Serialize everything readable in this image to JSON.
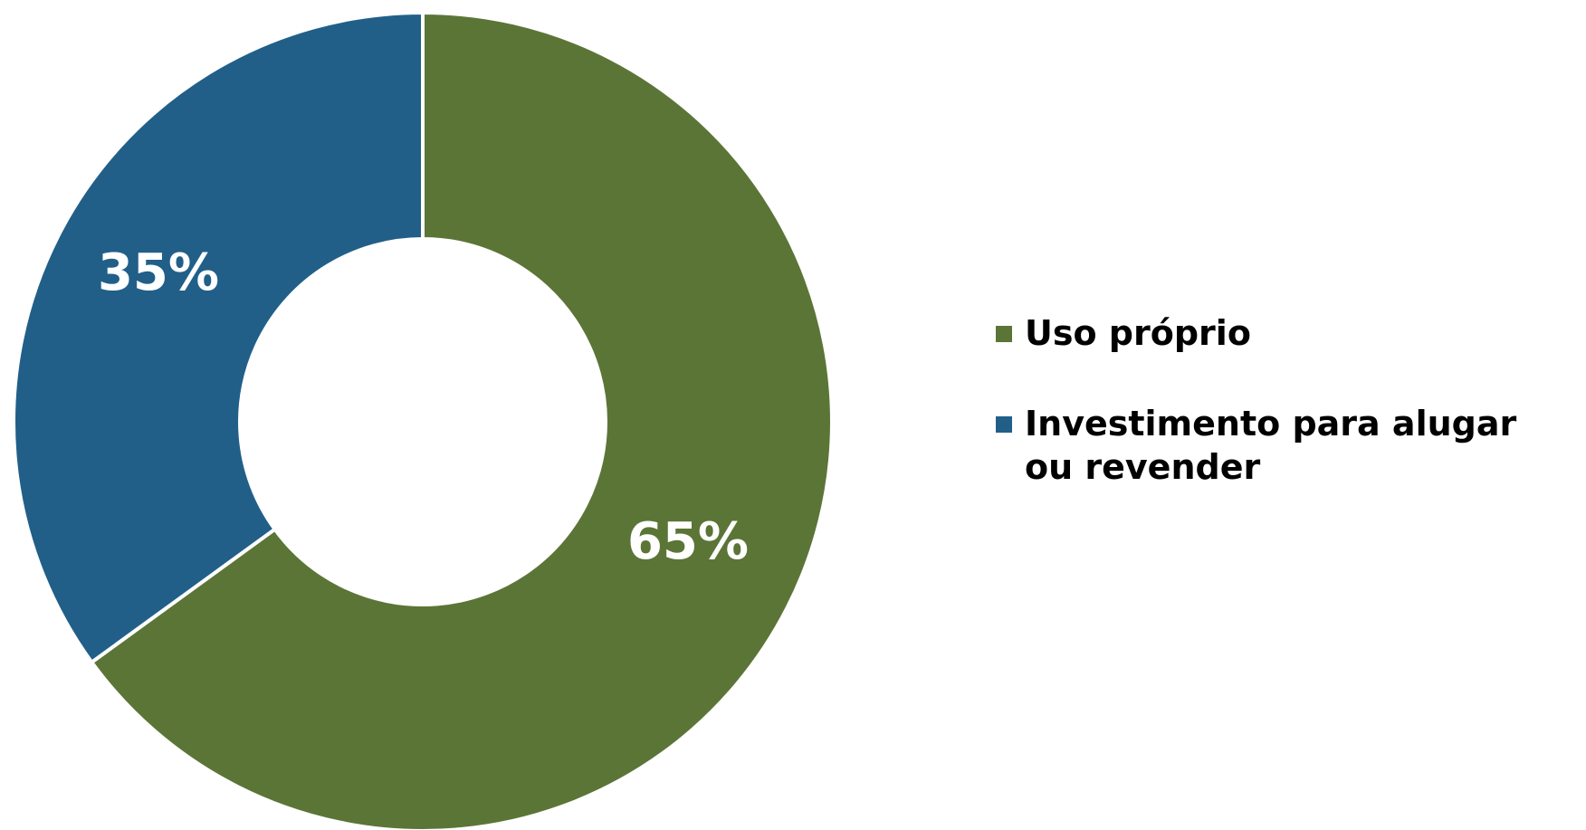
{
  "chart_data": {
    "type": "pie",
    "variant": "donut",
    "title": "",
    "slices": [
      {
        "label": "Uso próprio",
        "value": 65,
        "display": "65%",
        "color": "#5b7537"
      },
      {
        "label": "Investimento para alugar ou revender",
        "value": 35,
        "display": "35%",
        "color": "#215f89"
      }
    ],
    "legend_position": "right"
  }
}
